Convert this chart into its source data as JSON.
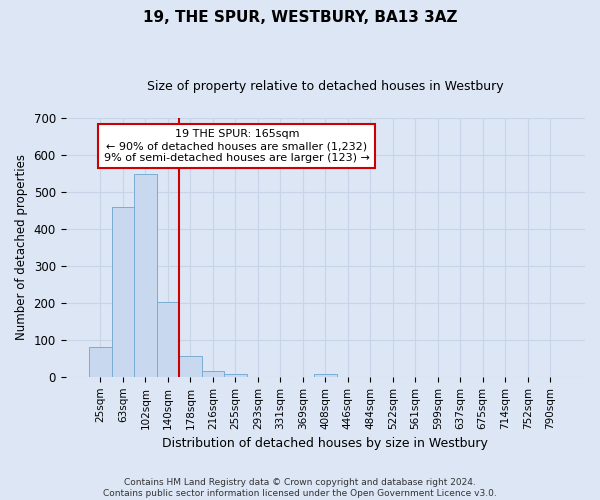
{
  "title": "19, THE SPUR, WESTBURY, BA13 3AZ",
  "subtitle": "Size of property relative to detached houses in Westbury",
  "xlabel": "Distribution of detached houses by size in Westbury",
  "ylabel": "Number of detached properties",
  "footer_line1": "Contains HM Land Registry data © Crown copyright and database right 2024.",
  "footer_line2": "Contains public sector information licensed under the Open Government Licence v3.0.",
  "categories": [
    "25sqm",
    "63sqm",
    "102sqm",
    "140sqm",
    "178sqm",
    "216sqm",
    "255sqm",
    "293sqm",
    "331sqm",
    "369sqm",
    "408sqm",
    "446sqm",
    "484sqm",
    "522sqm",
    "561sqm",
    "599sqm",
    "637sqm",
    "675sqm",
    "714sqm",
    "752sqm",
    "790sqm"
  ],
  "values": [
    80,
    460,
    548,
    203,
    55,
    15,
    8,
    0,
    0,
    0,
    8,
    0,
    0,
    0,
    0,
    0,
    0,
    0,
    0,
    0,
    0
  ],
  "bar_color": "#c8d9ef",
  "bar_edge_color": "#7aadd4",
  "vline_color": "#cc0000",
  "vline_x_index": 3.5,
  "ylim": [
    0,
    700
  ],
  "yticks": [
    0,
    100,
    200,
    300,
    400,
    500,
    600,
    700
  ],
  "annotation_line1": "19 THE SPUR: 165sqm",
  "annotation_line2": "← 90% of detached houses are smaller (1,232)",
  "annotation_line3": "9% of semi-detached houses are larger (123) →",
  "annotation_box_color": "#ffffff",
  "annotation_box_edge": "#cc0000",
  "grid_color": "#c8d4e8",
  "bg_color": "#dce6f5",
  "title_fontsize": 11,
  "subtitle_fontsize": 9
}
